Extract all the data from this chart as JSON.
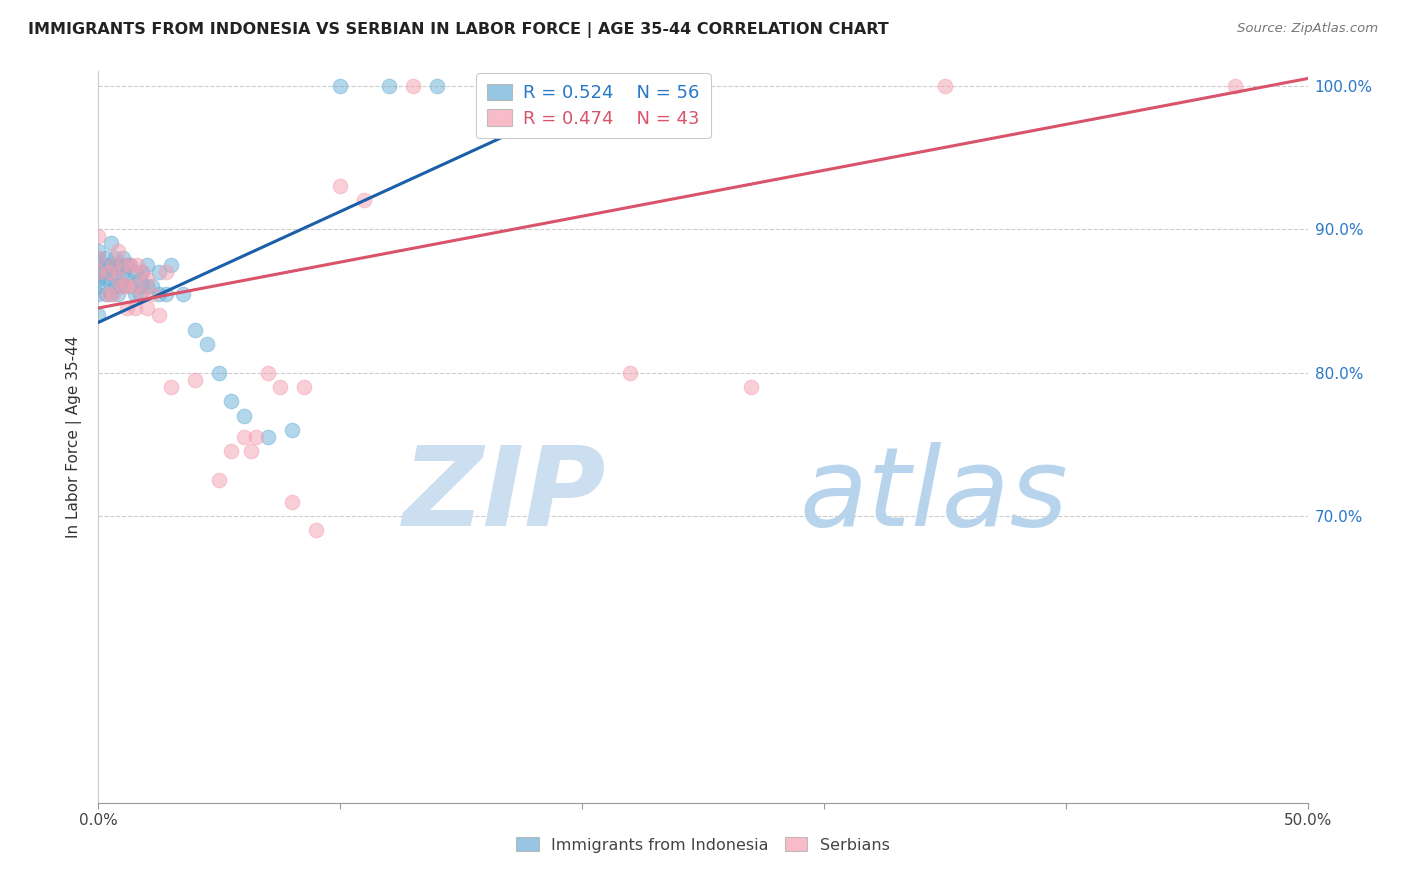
{
  "title": "IMMIGRANTS FROM INDONESIA VS SERBIAN IN LABOR FORCE | AGE 35-44 CORRELATION CHART",
  "source": "Source: ZipAtlas.com",
  "ylabel": "In Labor Force | Age 35-44",
  "xlim": [
    0.0,
    0.5
  ],
  "ylim": [
    0.5,
    1.01
  ],
  "yticks": [
    0.7,
    0.8,
    0.9,
    1.0
  ],
  "ytick_labels": [
    "70.0%",
    "80.0%",
    "90.0%",
    "100.0%"
  ],
  "xticks": [
    0.0,
    0.1,
    0.2,
    0.3,
    0.4,
    0.5
  ],
  "xtick_labels": [
    "0.0%",
    "",
    "",
    "",
    "",
    "50.0%"
  ],
  "blue_R": 0.524,
  "blue_N": 56,
  "pink_R": 0.474,
  "pink_N": 43,
  "blue_color": "#6baed6",
  "pink_color": "#f4a0b0",
  "blue_line_color": "#1a5fa8",
  "pink_line_color": "#d9546a",
  "legend_blue_color": "#2878c8",
  "legend_pink_color": "#d9546a",
  "blue_scatter_x": [
    0.0,
    0.0,
    0.0,
    0.0,
    0.0,
    0.0,
    0.0,
    0.0,
    0.003,
    0.003,
    0.003,
    0.003,
    0.003,
    0.005,
    0.005,
    0.005,
    0.005,
    0.007,
    0.007,
    0.007,
    0.008,
    0.008,
    0.009,
    0.009,
    0.01,
    0.01,
    0.01,
    0.012,
    0.012,
    0.013,
    0.013,
    0.015,
    0.015,
    0.017,
    0.017,
    0.018,
    0.018,
    0.02,
    0.02,
    0.022,
    0.025,
    0.025,
    0.028,
    0.03,
    0.035,
    0.04,
    0.045,
    0.05,
    0.055,
    0.06,
    0.07,
    0.08,
    0.1,
    0.12,
    0.14,
    0.22
  ],
  "blue_scatter_y": [
    0.84,
    0.855,
    0.86,
    0.865,
    0.87,
    0.875,
    0.88,
    0.885,
    0.855,
    0.865,
    0.87,
    0.875,
    0.88,
    0.855,
    0.865,
    0.875,
    0.89,
    0.86,
    0.87,
    0.88,
    0.855,
    0.875,
    0.86,
    0.875,
    0.86,
    0.87,
    0.88,
    0.865,
    0.875,
    0.86,
    0.875,
    0.855,
    0.87,
    0.855,
    0.865,
    0.86,
    0.87,
    0.86,
    0.875,
    0.86,
    0.855,
    0.87,
    0.855,
    0.875,
    0.855,
    0.83,
    0.82,
    0.8,
    0.78,
    0.77,
    0.755,
    0.76,
    1.0,
    1.0,
    1.0,
    1.0
  ],
  "pink_scatter_x": [
    0.0,
    0.0,
    0.0,
    0.004,
    0.004,
    0.006,
    0.006,
    0.008,
    0.008,
    0.01,
    0.01,
    0.012,
    0.012,
    0.013,
    0.015,
    0.015,
    0.016,
    0.018,
    0.018,
    0.02,
    0.02,
    0.022,
    0.025,
    0.028,
    0.03,
    0.04,
    0.05,
    0.055,
    0.06,
    0.063,
    0.065,
    0.07,
    0.075,
    0.08,
    0.085,
    0.09,
    0.1,
    0.11,
    0.13,
    0.22,
    0.27,
    0.35,
    0.47
  ],
  "pink_scatter_y": [
    0.87,
    0.88,
    0.895,
    0.855,
    0.87,
    0.855,
    0.875,
    0.865,
    0.885,
    0.86,
    0.875,
    0.845,
    0.86,
    0.875,
    0.845,
    0.86,
    0.875,
    0.855,
    0.87,
    0.845,
    0.865,
    0.855,
    0.84,
    0.87,
    0.79,
    0.795,
    0.725,
    0.745,
    0.755,
    0.745,
    0.755,
    0.8,
    0.79,
    0.71,
    0.79,
    0.69,
    0.93,
    0.92,
    1.0,
    0.8,
    0.79,
    1.0,
    1.0
  ],
  "blue_line_x0": 0.0,
  "blue_line_x1": 0.22,
  "blue_line_y0": 0.835,
  "blue_line_y1": 1.005,
  "pink_line_x0": 0.0,
  "pink_line_x1": 0.5,
  "pink_line_y0": 0.845,
  "pink_line_y1": 1.005
}
